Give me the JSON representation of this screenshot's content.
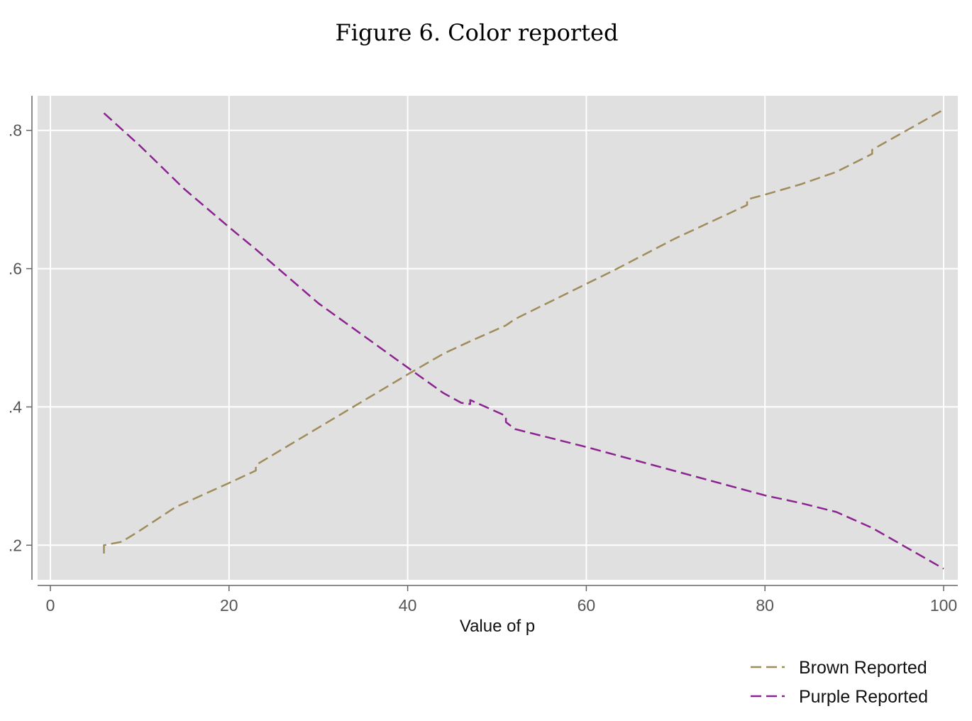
{
  "chart_data": {
    "type": "line",
    "title": "Figure 6. Color reported",
    "xlabel": "Value of p",
    "ylabel": "",
    "xlim": [
      0,
      100
    ],
    "ylim": [
      0.15,
      0.85
    ],
    "xticks": [
      0,
      20,
      40,
      60,
      80,
      100
    ],
    "xtick_labels": [
      "0",
      "20",
      "40",
      "60",
      "80",
      "100"
    ],
    "yticks": [
      0.2,
      0.4,
      0.6,
      0.8
    ],
    "ytick_labels": [
      ".2",
      ".4",
      ".6",
      ".8"
    ],
    "grid": true,
    "legend_position": "bottom-right",
    "plot_background": "#e0e0e0",
    "series": [
      {
        "name": "Brown Reported",
        "color": "#a08c5a",
        "dash": "dashed",
        "x": [
          6,
          6,
          8,
          10,
          14,
          20,
          23,
          23,
          30,
          40,
          44,
          47,
          51,
          52,
          60,
          63,
          70,
          78,
          78,
          80,
          84,
          88,
          92,
          92,
          100
        ],
        "y": [
          0.188,
          0.2,
          0.205,
          0.221,
          0.255,
          0.29,
          0.308,
          0.316,
          0.37,
          0.447,
          0.477,
          0.495,
          0.518,
          0.527,
          0.578,
          0.597,
          0.644,
          0.692,
          0.7,
          0.707,
          0.722,
          0.74,
          0.766,
          0.772,
          0.83
        ]
      },
      {
        "name": "Purple Reported",
        "color": "#8b2490",
        "dash": "dashed",
        "x": [
          6,
          10,
          15,
          20,
          23,
          30,
          40,
          44,
          46,
          47,
          47,
          51,
          51,
          52,
          60,
          70,
          80,
          84,
          88,
          92,
          100
        ],
        "y": [
          0.825,
          0.778,
          0.715,
          0.66,
          0.628,
          0.55,
          0.457,
          0.42,
          0.406,
          0.404,
          0.41,
          0.387,
          0.378,
          0.368,
          0.342,
          0.307,
          0.272,
          0.261,
          0.248,
          0.225,
          0.166
        ]
      }
    ]
  }
}
